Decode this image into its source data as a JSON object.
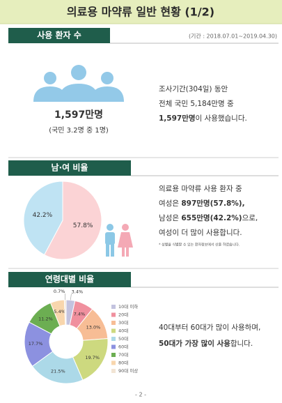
{
  "header": {
    "title": "의료용 마약류 일반 현황 (1/2)"
  },
  "sections": [
    {
      "tab": "사용 환자 수",
      "period": "(기간 : 2018.07.01~2019.04.30)",
      "figure": "1,597만명",
      "figure_note": "(국민 3.2명 중 1명)",
      "lines": [
        [
          {
            "text": "조사기간(304일) 동안"
          }
        ],
        [
          {
            "text": "전체 국민 5,184만명 중"
          }
        ],
        [
          {
            "text": "1,597만명",
            "bold": true
          },
          {
            "text": "이 사용했습니다."
          }
        ]
      ]
    },
    {
      "tab": "남·여 비율",
      "lines": [
        [
          {
            "text": "의료용 마약류 사용 환자 중"
          }
        ],
        [
          {
            "text": "여성은 "
          },
          {
            "text": "897만명(57.8%),",
            "bold": true
          }
        ],
        [
          {
            "text": "남성은 "
          },
          {
            "text": "655만명(42.2%)",
            "bold": true
          },
          {
            "text": "으로,"
          }
        ],
        [
          {
            "text": "여성이 더 많이 사용합니다."
          }
        ]
      ],
      "note": "* 성별을 식별할 수 있는 환자정보에서 산출 하였습니다."
    },
    {
      "tab": "연령대별 비율",
      "lines": [
        [
          {
            "text": "40대부터 60대가 많이 사용하며,"
          }
        ],
        [
          {
            "text": "50대가 가장 많이 사용",
            "bold": true
          },
          {
            "text": "합니다."
          }
        ]
      ]
    }
  ],
  "chart_data": [
    {
      "type": "pie",
      "values": [
        57.8,
        42.2
      ],
      "value_labels": [
        "57.8%",
        "42.2%"
      ],
      "colors": [
        "#fbd3d5",
        "#bfe3f3"
      ]
    },
    {
      "type": "donut",
      "categories": [
        "10대 이하",
        "20대",
        "30대",
        "40대",
        "50대",
        "60대",
        "70대",
        "80대",
        "90대 이상"
      ],
      "values": [
        3.4,
        7.4,
        13.0,
        19.7,
        21.5,
        17.7,
        11.2,
        5.4,
        0.7
      ],
      "value_labels": [
        "3.4%",
        "7.4%",
        "13.0%",
        "19.7%",
        "21.5%",
        "17.7%",
        "11.2%",
        "5.4%",
        "0.7%"
      ],
      "colors": [
        "#c3c3df",
        "#f0909e",
        "#f7bd95",
        "#cdd97f",
        "#acd9e8",
        "#8c91e0",
        "#6cae52",
        "#f8d6ad",
        "#f2e4d4"
      ]
    }
  ],
  "footer": "- 2 -"
}
